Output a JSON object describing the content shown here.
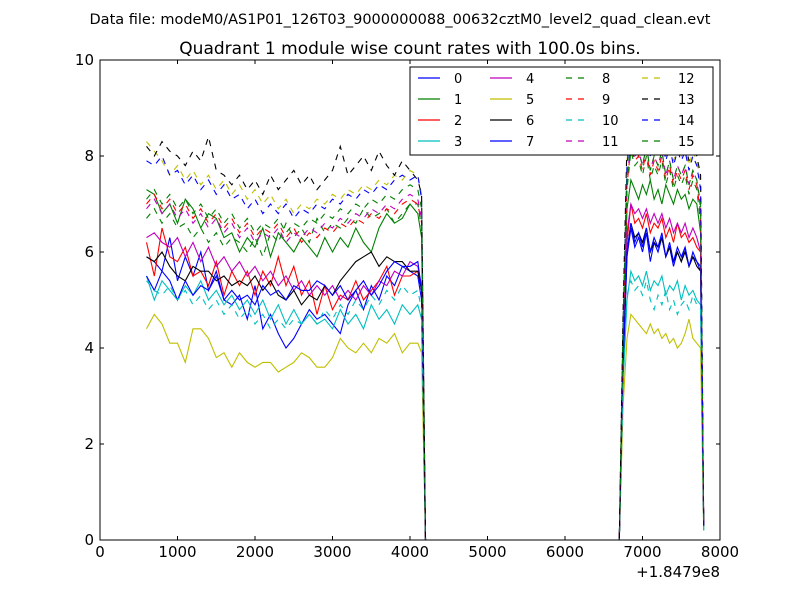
{
  "suptitle": "Data file: modeM0/AS1P01_126T03_9000000088_00632cztM0_level2_quad_clean.evt",
  "chart_data": {
    "type": "line",
    "title": "Quadrant 1 module wise count rates with 100.0s bins.",
    "xlabel": "",
    "ylabel": "",
    "x_offset_label": "+1.8479e8",
    "xlim": [
      0,
      8000
    ],
    "ylim": [
      0,
      10
    ],
    "xticks": [
      0,
      1000,
      2000,
      3000,
      4000,
      5000,
      6000,
      7000,
      8000
    ],
    "yticks": [
      0,
      2,
      4,
      6,
      8,
      10
    ],
    "grid": false,
    "legend_position": "top-right",
    "x": [
      600,
      700,
      800,
      900,
      1000,
      1100,
      1200,
      1300,
      1400,
      1500,
      1600,
      1700,
      1800,
      1900,
      2000,
      2100,
      2200,
      2300,
      2400,
      2500,
      2600,
      2700,
      2800,
      2900,
      3000,
      3100,
      3200,
      3300,
      3400,
      3500,
      3600,
      3700,
      3800,
      3900,
      4000,
      4100,
      4150,
      4200,
      6700,
      6750,
      6800,
      6850,
      6900,
      6950,
      7000,
      7050,
      7100,
      7150,
      7200,
      7250,
      7300,
      7350,
      7400,
      7450,
      7500,
      7550,
      7600,
      7650,
      7700,
      7750,
      7790
    ],
    "series": [
      {
        "name": "0",
        "color": "#0000ff",
        "dash": "solid",
        "values": [
          5.9,
          5.8,
          5.6,
          6.3,
          5.4,
          5.9,
          5.5,
          6.0,
          5.2,
          5.6,
          5.0,
          4.9,
          5.1,
          4.6,
          5.3,
          4.4,
          4.7,
          4.3,
          4.0,
          4.2,
          4.5,
          4.8,
          4.6,
          4.7,
          4.5,
          4.3,
          4.9,
          5.2,
          4.8,
          5.3,
          5.0,
          5.5,
          5.3,
          5.7,
          5.6,
          5.5,
          5.0,
          0.0,
          0.0,
          3.5,
          5.9,
          6.5,
          6.1,
          6.3,
          6.0,
          6.4,
          5.8,
          6.2,
          6.0,
          6.3,
          5.9,
          6.1,
          5.7,
          6.0,
          5.8,
          6.1,
          5.7,
          5.9,
          5.8,
          5.6,
          0.3
        ]
      },
      {
        "name": "1",
        "color": "#008000",
        "dash": "solid",
        "values": [
          7.3,
          7.2,
          6.8,
          7.0,
          6.6,
          7.1,
          6.9,
          6.5,
          6.8,
          6.7,
          6.3,
          6.4,
          6.0,
          6.3,
          6.1,
          6.5,
          5.9,
          6.4,
          6.2,
          6.0,
          6.3,
          6.1,
          5.9,
          6.3,
          6.0,
          6.3,
          6.1,
          6.5,
          6.2,
          6.0,
          6.5,
          6.8,
          6.6,
          6.7,
          7.0,
          6.8,
          6.3,
          0.0,
          0.0,
          4.0,
          6.9,
          7.5,
          7.3,
          7.1,
          7.4,
          7.2,
          7.5,
          7.1,
          7.3,
          7.0,
          7.4,
          7.2,
          7.0,
          7.3,
          7.1,
          7.2,
          6.9,
          7.1,
          7.0,
          6.4,
          0.3
        ]
      },
      {
        "name": "2",
        "color": "#ff0000",
        "dash": "solid",
        "values": [
          6.2,
          5.5,
          6.5,
          5.9,
          5.8,
          6.1,
          5.5,
          5.6,
          5.3,
          5.8,
          5.1,
          5.6,
          5.3,
          5.6,
          5.1,
          5.6,
          5.3,
          5.9,
          5.3,
          5.7,
          5.1,
          5.4,
          4.7,
          5.3,
          4.8,
          5.1,
          5.0,
          5.4,
          5.0,
          5.2,
          5.4,
          5.7,
          5.1,
          5.5,
          5.5,
          5.6,
          5.2,
          0.0,
          0.0,
          3.6,
          6.2,
          7.0,
          6.6,
          6.7,
          6.5,
          6.8,
          6.4,
          6.6,
          6.5,
          6.7,
          6.3,
          6.5,
          6.2,
          6.6,
          6.3,
          6.4,
          6.2,
          6.3,
          6.1,
          6.0,
          0.3
        ]
      },
      {
        "name": "3",
        "color": "#00bfbf",
        "dash": "solid",
        "values": [
          5.5,
          5.0,
          5.4,
          5.2,
          5.0,
          5.3,
          5.1,
          5.4,
          5.0,
          5.2,
          4.9,
          5.1,
          4.8,
          5.0,
          4.7,
          5.0,
          4.6,
          4.9,
          4.5,
          4.8,
          4.5,
          4.7,
          4.5,
          4.6,
          4.4,
          4.8,
          4.5,
          4.7,
          4.4,
          4.9,
          4.6,
          4.8,
          4.5,
          4.9,
          4.7,
          4.9,
          4.6,
          0.0,
          0.0,
          3.3,
          5.0,
          5.6,
          5.4,
          5.5,
          5.3,
          5.6,
          5.2,
          5.4,
          5.3,
          5.5,
          5.1,
          5.3,
          5.2,
          5.4,
          5.0,
          5.3,
          5.1,
          5.2,
          5.0,
          4.9,
          0.2
        ]
      },
      {
        "name": "4",
        "color": "#bf00bf",
        "dash": "solid",
        "values": [
          6.3,
          6.4,
          6.2,
          6.1,
          6.3,
          5.9,
          6.2,
          5.8,
          6.1,
          5.7,
          5.9,
          5.6,
          5.8,
          5.5,
          5.7,
          5.4,
          5.6,
          5.3,
          5.5,
          5.2,
          5.4,
          5.1,
          5.3,
          5.1,
          5.3,
          5.0,
          5.2,
          5.0,
          5.3,
          5.1,
          5.4,
          5.3,
          5.6,
          5.5,
          5.8,
          5.7,
          5.3,
          0.0,
          0.0,
          3.8,
          6.4,
          7.0,
          6.8,
          6.9,
          6.7,
          6.9,
          6.6,
          6.8,
          6.6,
          6.8,
          6.5,
          6.7,
          6.4,
          6.6,
          6.4,
          6.6,
          6.3,
          6.5,
          6.3,
          6.0,
          0.3
        ]
      },
      {
        "name": "5",
        "color": "#bfbf00",
        "dash": "solid",
        "values": [
          4.4,
          4.7,
          4.5,
          4.1,
          4.1,
          3.7,
          4.4,
          4.4,
          4.2,
          3.8,
          3.9,
          3.6,
          3.9,
          3.7,
          3.6,
          3.7,
          3.7,
          3.5,
          3.6,
          3.7,
          3.9,
          3.8,
          3.6,
          3.6,
          3.8,
          4.2,
          4.0,
          3.9,
          4.1,
          3.9,
          4.2,
          4.1,
          4.3,
          3.9,
          4.1,
          4.1,
          3.9,
          0.0,
          0.0,
          2.8,
          4.2,
          4.7,
          4.6,
          4.5,
          4.4,
          4.3,
          4.5,
          4.3,
          4.4,
          4.2,
          4.3,
          4.1,
          4.2,
          4.0,
          4.1,
          4.3,
          4.6,
          4.2,
          4.1,
          4.0,
          0.2
        ]
      },
      {
        "name": "6",
        "color": "#000000",
        "dash": "solid",
        "values": [
          5.9,
          5.8,
          6.0,
          5.7,
          5.5,
          5.4,
          5.7,
          5.6,
          5.6,
          5.4,
          5.5,
          5.3,
          5.4,
          5.3,
          5.5,
          5.2,
          5.4,
          5.1,
          5.0,
          5.2,
          4.9,
          5.1,
          5.0,
          5.3,
          5.1,
          5.4,
          5.6,
          5.8,
          5.9,
          6.0,
          5.7,
          5.9,
          5.8,
          5.8,
          5.6,
          5.6,
          5.2,
          0.0,
          0.0,
          3.7,
          6.0,
          6.6,
          6.3,
          6.4,
          6.2,
          6.5,
          6.0,
          6.2,
          6.1,
          6.3,
          5.9,
          6.1,
          5.8,
          6.0,
          5.8,
          6.0,
          5.7,
          5.9,
          5.7,
          5.6,
          0.3
        ]
      },
      {
        "name": "7",
        "color": "#0000ff",
        "dash": "solid",
        "values": [
          5.5,
          5.2,
          5.6,
          5.4,
          5.0,
          5.4,
          5.1,
          5.3,
          5.2,
          5.5,
          5.0,
          5.2,
          5.0,
          5.1,
          4.9,
          5.3,
          5.1,
          5.2,
          5.0,
          5.3,
          5.2,
          5.2,
          5.4,
          5.3,
          5.1,
          5.3,
          5.0,
          5.2,
          5.4,
          5.1,
          5.3,
          5.6,
          5.8,
          5.7,
          5.7,
          5.8,
          5.2,
          0.0,
          0.0,
          3.6,
          6.0,
          6.6,
          6.2,
          6.4,
          6.1,
          6.5,
          6.0,
          6.3,
          6.1,
          6.4,
          5.9,
          6.2,
          5.8,
          6.1,
          5.9,
          6.1,
          5.7,
          6.0,
          5.8,
          5.7,
          0.3
        ]
      },
      {
        "name": "8",
        "color": "#008000",
        "dash": "dashed",
        "values": [
          6.7,
          6.9,
          6.6,
          6.8,
          6.5,
          6.6,
          6.3,
          6.5,
          6.2,
          6.4,
          6.1,
          6.3,
          6.2,
          6.0,
          6.3,
          5.9,
          6.4,
          6.2,
          6.6,
          6.3,
          6.5,
          6.2,
          6.7,
          6.4,
          6.6,
          6.5,
          6.7,
          6.6,
          6.9,
          6.7,
          6.8,
          6.9,
          6.6,
          6.8,
          7.0,
          7.0,
          6.5,
          0.0,
          0.0,
          4.2,
          7.3,
          8.1,
          7.8,
          7.9,
          7.6,
          8.0,
          7.5,
          7.8,
          7.6,
          7.9,
          7.4,
          7.7,
          7.3,
          7.6,
          7.4,
          7.6,
          7.2,
          7.5,
          7.3,
          6.6,
          0.3
        ]
      },
      {
        "name": "9",
        "color": "#ff0000",
        "dash": "dashed",
        "values": [
          7.0,
          7.2,
          6.9,
          7.1,
          6.8,
          7.0,
          6.7,
          6.9,
          6.6,
          6.8,
          6.5,
          6.7,
          6.4,
          6.6,
          6.3,
          6.5,
          6.4,
          6.6,
          6.3,
          6.5,
          6.2,
          6.4,
          6.3,
          6.5,
          6.4,
          6.6,
          6.5,
          6.7,
          6.6,
          6.8,
          6.7,
          6.9,
          6.8,
          7.0,
          7.1,
          7.0,
          6.6,
          0.0,
          0.0,
          4.3,
          7.4,
          8.2,
          7.9,
          8.0,
          7.7,
          8.1,
          7.6,
          7.9,
          7.7,
          8.0,
          7.5,
          7.8,
          7.4,
          7.7,
          7.5,
          7.7,
          7.3,
          7.6,
          7.4,
          6.8,
          0.3
        ]
      },
      {
        "name": "10",
        "color": "#00bfbf",
        "dash": "dashed",
        "values": [
          5.4,
          5.2,
          5.1,
          5.3,
          5.0,
          5.2,
          4.9,
          5.1,
          4.8,
          5.0,
          4.7,
          4.9,
          4.6,
          4.8,
          4.5,
          4.7,
          4.4,
          4.6,
          4.4,
          4.6,
          4.5,
          4.7,
          4.5,
          4.8,
          4.6,
          4.9,
          4.7,
          5.0,
          4.8,
          5.1,
          4.9,
          5.2,
          5.0,
          5.3,
          5.1,
          5.2,
          4.8,
          0.0,
          0.0,
          3.2,
          5.1,
          5.4,
          5.2,
          5.3,
          5.1,
          5.4,
          5.0,
          4.8,
          5.1,
          4.9,
          5.2,
          4.8,
          5.0,
          4.7,
          4.9,
          5.0,
          4.8,
          5.1,
          4.9,
          4.8,
          0.2
        ]
      },
      {
        "name": "11",
        "color": "#bf00bf",
        "dash": "dashed",
        "values": [
          6.9,
          7.1,
          6.8,
          7.0,
          6.7,
          6.9,
          6.6,
          6.8,
          6.5,
          6.7,
          6.4,
          6.6,
          6.3,
          6.5,
          6.2,
          6.4,
          6.3,
          6.5,
          6.2,
          6.4,
          6.3,
          6.5,
          6.4,
          6.6,
          6.5,
          6.7,
          6.6,
          6.8,
          6.7,
          6.9,
          6.8,
          7.0,
          6.9,
          7.1,
          7.2,
          7.1,
          6.7,
          0.0,
          0.0,
          4.4,
          7.5,
          8.3,
          8.0,
          8.1,
          7.8,
          8.2,
          7.7,
          8.0,
          7.8,
          8.1,
          7.6,
          7.9,
          7.5,
          7.8,
          7.6,
          7.8,
          7.4,
          7.7,
          7.5,
          6.9,
          0.3
        ]
      },
      {
        "name": "12",
        "color": "#bfbf00",
        "dash": "dashed",
        "values": [
          8.3,
          8.1,
          7.9,
          7.6,
          7.8,
          7.5,
          7.7,
          7.4,
          7.6,
          7.3,
          7.5,
          7.2,
          7.4,
          7.1,
          7.3,
          7.0,
          7.2,
          6.9,
          7.1,
          6.8,
          7.0,
          6.9,
          7.1,
          7.0,
          7.2,
          7.1,
          7.3,
          7.2,
          7.4,
          7.3,
          7.5,
          7.4,
          7.6,
          7.5,
          7.7,
          7.6,
          7.2,
          0.0,
          0.0,
          4.6,
          7.9,
          8.7,
          8.4,
          8.5,
          8.2,
          8.6,
          8.1,
          8.4,
          8.2,
          8.5,
          8.0,
          8.3,
          7.9,
          8.2,
          8.0,
          8.2,
          7.8,
          8.1,
          7.9,
          7.4,
          0.3
        ]
      },
      {
        "name": "13",
        "color": "#000000",
        "dash": "dashed",
        "values": [
          8.2,
          8.0,
          8.3,
          8.1,
          8.0,
          7.8,
          8.1,
          7.9,
          8.4,
          7.7,
          7.6,
          7.4,
          7.6,
          7.3,
          7.5,
          7.2,
          7.6,
          7.3,
          7.5,
          7.7,
          7.4,
          7.6,
          7.3,
          7.5,
          7.7,
          8.2,
          7.6,
          7.8,
          8.0,
          7.7,
          8.1,
          7.8,
          7.6,
          7.9,
          7.7,
          7.5,
          7.2,
          0.0,
          0.0,
          4.8,
          8.3,
          9.0,
          8.6,
          8.7,
          8.4,
          8.8,
          8.3,
          8.5,
          8.3,
          8.6,
          8.1,
          8.4,
          8.0,
          8.3,
          8.1,
          8.3,
          7.9,
          8.2,
          8.0,
          7.6,
          0.3
        ]
      },
      {
        "name": "14",
        "color": "#0000ff",
        "dash": "dashed",
        "values": [
          7.9,
          7.8,
          8.0,
          7.6,
          7.7,
          7.4,
          7.6,
          7.3,
          7.5,
          7.2,
          7.4,
          7.1,
          7.2,
          6.9,
          7.1,
          6.8,
          7.0,
          6.8,
          7.0,
          6.7,
          6.9,
          6.8,
          7.0,
          6.9,
          7.1,
          7.0,
          7.2,
          7.1,
          7.3,
          7.2,
          7.4,
          7.3,
          7.5,
          7.6,
          7.5,
          7.6,
          7.1,
          0.0,
          0.0,
          4.5,
          7.8,
          8.6,
          8.3,
          8.4,
          8.1,
          8.5,
          8.0,
          8.3,
          8.1,
          8.4,
          7.9,
          8.2,
          7.8,
          8.1,
          7.9,
          8.1,
          7.7,
          8.0,
          7.8,
          7.3,
          0.3
        ]
      },
      {
        "name": "15",
        "color": "#008000",
        "dash": "dashed",
        "values": [
          7.1,
          7.3,
          7.0,
          7.2,
          6.9,
          7.1,
          6.8,
          7.0,
          6.7,
          6.9,
          6.6,
          6.8,
          6.5,
          6.7,
          6.4,
          6.6,
          6.5,
          6.7,
          6.4,
          6.6,
          6.5,
          6.7,
          6.6,
          6.8,
          6.7,
          6.9,
          6.8,
          7.0,
          6.9,
          7.1,
          7.0,
          7.2,
          7.1,
          7.3,
          7.4,
          7.3,
          6.9,
          0.0,
          0.0,
          4.4,
          7.5,
          8.3,
          8.0,
          8.1,
          7.8,
          8.2,
          7.7,
          8.0,
          7.8,
          8.1,
          7.6,
          7.9,
          7.5,
          7.8,
          7.6,
          7.8,
          7.4,
          7.7,
          7.5,
          7.0,
          0.3
        ]
      }
    ]
  }
}
